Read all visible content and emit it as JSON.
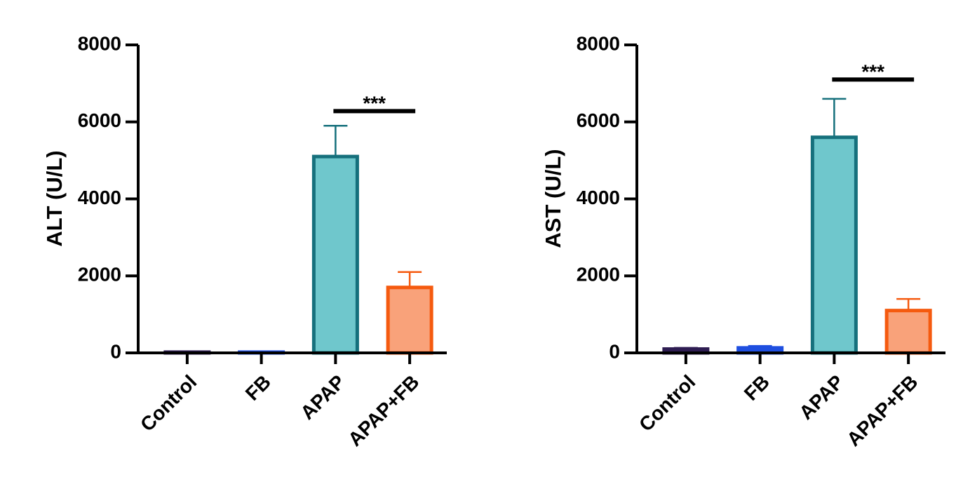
{
  "chart_data": [
    {
      "type": "bar",
      "y_label": "ALT (U/L)",
      "categories": [
        "Control",
        "FB",
        "APAP",
        "APAP+FB"
      ],
      "values": [
        20,
        20,
        5100,
        1700
      ],
      "errors": [
        10,
        10,
        800,
        400
      ],
      "colors": [
        "#2e1d52",
        "#1f4fe0",
        "#6fc7cc",
        "#f9a27a"
      ],
      "edge_colors": [
        "#2e1d52",
        "#1f4fe0",
        "#16707c",
        "#f55a0f"
      ],
      "ylim": [
        0,
        8000
      ],
      "yticks": [
        0,
        2000,
        4000,
        6000,
        8000
      ],
      "significance": {
        "from": "APAP",
        "to": "APAP+FB",
        "label": "***",
        "value": 6280
      }
    },
    {
      "type": "bar",
      "y_label": "AST (U/L)",
      "categories": [
        "Control",
        "FB",
        "APAP",
        "APAP+FB"
      ],
      "values": [
        100,
        130,
        5600,
        1100
      ],
      "errors": [
        30,
        50,
        1000,
        300
      ],
      "colors": [
        "#2e1d52",
        "#1f4fe0",
        "#6fc7cc",
        "#f9a27a"
      ],
      "edge_colors": [
        "#2e1d52",
        "#1f4fe0",
        "#16707c",
        "#f55a0f"
      ],
      "ylim": [
        0,
        8000
      ],
      "yticks": [
        0,
        2000,
        4000,
        6000,
        8000
      ],
      "significance": {
        "from": "APAP",
        "to": "APAP+FB",
        "label": "***",
        "value": 7100
      }
    }
  ]
}
